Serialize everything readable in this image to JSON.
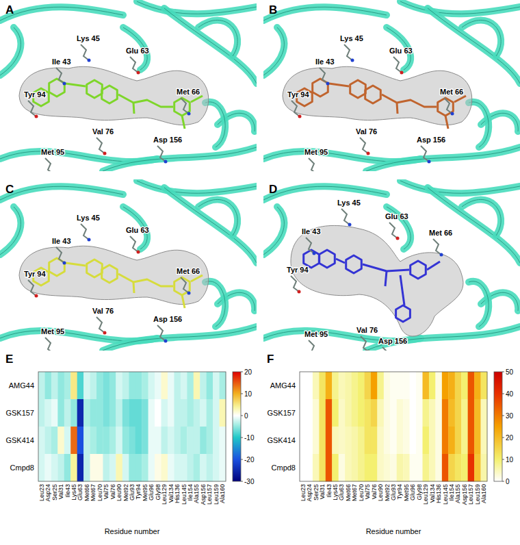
{
  "panels": [
    {
      "label": "A",
      "residues": [
        "Lys 45",
        "Glu 63",
        "Ile 43",
        "Tyr 94",
        "Met 66",
        "Val 76",
        "Asp 156",
        "Met 95"
      ]
    },
    {
      "label": "B",
      "residues": [
        "Lys 45",
        "Glu 63",
        "Ile 43",
        "Tyr 94",
        "Met 66",
        "Val 76",
        "Asp 156",
        "Met 95"
      ]
    },
    {
      "label": "C",
      "residues": [
        "Lys 45",
        "Glu 63",
        "Ile 43",
        "Tyr 94",
        "Met 66",
        "Val 76",
        "Asp 156",
        "Met 95"
      ]
    },
    {
      "label": "D",
      "residues": [
        "Lys 45",
        "Glu 63",
        "Ile 43",
        "Tyr 94",
        "Met 66",
        "Val 76",
        "Asp 156",
        "Met 95"
      ]
    }
  ],
  "chart_data": [
    {
      "type": "heatmap",
      "label": "E",
      "x_label": "Residue number",
      "categories": [
        "Leu23",
        "Asp24",
        "Ser25",
        "Val31",
        "Ile43",
        "Lys45",
        "Glu63",
        "Met66",
        "Met67",
        "Leu70",
        "Val75",
        "Val76",
        "Leu90",
        "Met92",
        "Glu93",
        "Tyr94",
        "Met95",
        "Glu96",
        "Gly98",
        "Leu129",
        "Val134",
        "His136",
        "Leu145",
        "Ile154",
        "Ala155",
        "Asp156",
        "Leu157",
        "Leu159",
        "Ala160"
      ],
      "rows": [
        "AMG44",
        "GSK157",
        "GSK414",
        "Cmpd8"
      ],
      "values": [
        [
          -3,
          -5,
          -3,
          -5,
          -4,
          5,
          -8,
          -2,
          -3,
          -5,
          -6,
          -5,
          -2,
          -3,
          -5,
          -5,
          -4,
          -2,
          -1,
          2,
          -1,
          -3,
          -2,
          -4,
          3,
          -3,
          -5,
          -2,
          -4
        ],
        [
          -3,
          -2,
          -1,
          -5,
          -3,
          -5,
          -25,
          -4,
          -5,
          -5,
          -6,
          -5,
          -3,
          -6,
          -7,
          -7,
          -6,
          -1,
          0,
          -2,
          -1,
          -3,
          -3,
          -4,
          -3,
          -2,
          -4,
          -2,
          3
        ],
        [
          -2,
          -3,
          -4,
          2,
          -2,
          14,
          -20,
          -3,
          -4,
          -5,
          -5,
          -4,
          -2,
          -5,
          -6,
          -7,
          -6,
          -1,
          -1,
          -3,
          -2,
          -3,
          -4,
          -3,
          -3,
          -5,
          -4,
          -2,
          -1
        ],
        [
          -2,
          -1,
          -2,
          -3,
          -5,
          4,
          -25,
          -3,
          1,
          1,
          -3,
          -2,
          3,
          -2,
          -5,
          -5,
          -4,
          -1,
          1,
          2,
          -1,
          -2,
          -2,
          -3,
          -4,
          -2,
          -3,
          -2,
          -1
        ]
      ],
      "colorbar": {
        "range": [
          -30,
          20
        ],
        "ticks": [
          -30,
          -20,
          -10,
          0,
          10,
          20
        ]
      }
    },
    {
      "type": "heatmap",
      "label": "F",
      "x_label": "Residue number",
      "categories": [
        "Leu23",
        "Asp24",
        "Ser25",
        "Val31",
        "Ile43",
        "Lys45",
        "Glu63",
        "Met66",
        "Met67",
        "Leu70",
        "Val75",
        "Val76",
        "Leu90",
        "Met92",
        "Glu93",
        "Tyr94",
        "Met95",
        "Glu96",
        "Gly98",
        "Leu129",
        "Val134",
        "His136",
        "Leu145",
        "Ile154",
        "Ala155",
        "Asp156",
        "Leu157",
        "Leu159",
        "Ala160"
      ],
      "rows": [
        "AMG44",
        "GSK157",
        "GSK414",
        "Cmpd8"
      ],
      "values": [
        [
          0,
          0,
          5,
          12,
          22,
          8,
          5,
          6,
          8,
          10,
          15,
          25,
          8,
          2,
          1,
          1,
          1,
          0,
          1,
          20,
          10,
          2,
          25,
          22,
          15,
          10,
          35,
          22,
          12
        ],
        [
          0,
          0,
          3,
          12,
          35,
          10,
          4,
          6,
          8,
          10,
          12,
          15,
          5,
          2,
          1,
          3,
          2,
          0,
          1,
          8,
          5,
          2,
          30,
          20,
          15,
          8,
          35,
          20,
          5
        ],
        [
          0,
          0,
          3,
          12,
          35,
          5,
          4,
          5,
          6,
          8,
          12,
          12,
          4,
          2,
          1,
          3,
          2,
          0,
          1,
          10,
          5,
          2,
          30,
          22,
          15,
          8,
          35,
          20,
          5
        ],
        [
          0,
          0,
          5,
          12,
          35,
          10,
          2,
          5,
          6,
          8,
          10,
          10,
          4,
          3,
          2,
          6,
          5,
          1,
          1,
          8,
          5,
          2,
          35,
          15,
          12,
          10,
          40,
          18,
          6
        ]
      ],
      "colorbar": {
        "range": [
          0,
          50
        ],
        "ticks": [
          0,
          10,
          20,
          30,
          40,
          50
        ]
      }
    }
  ]
}
